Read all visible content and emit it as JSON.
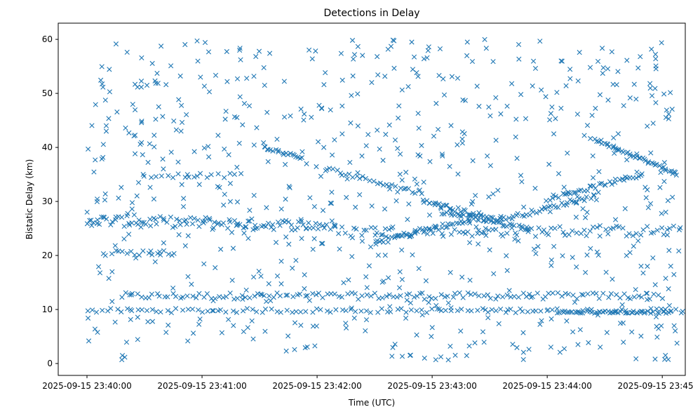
{
  "chart_data": {
    "type": "scatter",
    "title": "Detections in Delay",
    "xlabel": "Time (UTC)",
    "ylabel": "Bistatic Delay (km)",
    "xlim_seconds": [
      -15,
      312
    ],
    "ylim": [
      -2.2,
      63
    ],
    "x_ticks": [
      {
        "t": 0,
        "label": "2025-09-15 23:40:00"
      },
      {
        "t": 60,
        "label": "2025-09-15 23:41:00"
      },
      {
        "t": 120,
        "label": "2025-09-15 23:42:00"
      },
      {
        "t": 180,
        "label": "2025-09-15 23:43:00"
      },
      {
        "t": 240,
        "label": "2025-09-15 23:44:00"
      },
      {
        "t": 300,
        "label": "2025-09-15 23:45:00"
      }
    ],
    "y_ticks": [
      0,
      10,
      20,
      30,
      40,
      50,
      60
    ],
    "marker": "x",
    "color": "#1f77b4",
    "tracks": [
      {
        "t0": 18,
        "t1": 300,
        "y0": 12.5,
        "y1": 12.5,
        "n": 140,
        "jitter": 0.6
      },
      {
        "t0": 0,
        "t1": 310,
        "y0": 9.8,
        "y1": 9.8,
        "n": 120,
        "jitter": 0.4
      },
      {
        "t0": 0,
        "t1": 130,
        "y0": 26.5,
        "y1": 25.5,
        "n": 110,
        "jitter": 1.0
      },
      {
        "t0": 130,
        "t1": 310,
        "y0": 24.5,
        "y1": 24.5,
        "n": 100,
        "jitter": 1.0
      },
      {
        "t0": 150,
        "t1": 200,
        "y0": 22.5,
        "y1": 26.5,
        "n": 40,
        "jitter": 0.5
      },
      {
        "t0": 175,
        "t1": 215,
        "y0": 30.0,
        "y1": 26.5,
        "n": 40,
        "jitter": 0.5
      },
      {
        "t0": 185,
        "t1": 230,
        "y0": 28.0,
        "y1": 25.0,
        "n": 35,
        "jitter": 0.4
      },
      {
        "t0": 215,
        "t1": 265,
        "y0": 26.5,
        "y1": 31.0,
        "n": 40,
        "jitter": 0.4
      },
      {
        "t0": 240,
        "t1": 290,
        "y0": 30.5,
        "y1": 35.0,
        "n": 40,
        "jitter": 0.4
      },
      {
        "t0": 265,
        "t1": 308,
        "y0": 41.5,
        "y1": 35.0,
        "n": 45,
        "jitter": 0.3
      },
      {
        "t0": 92,
        "t1": 112,
        "y0": 40.0,
        "y1": 38.0,
        "n": 20,
        "jitter": 0.3
      },
      {
        "t0": 125,
        "t1": 175,
        "y0": 36.0,
        "y1": 31.5,
        "n": 30,
        "jitter": 0.4
      },
      {
        "t0": 8,
        "t1": 45,
        "y0": 20.5,
        "y1": 20.5,
        "n": 18,
        "jitter": 0.5
      },
      {
        "t0": 30,
        "t1": 80,
        "y0": 34.8,
        "y1": 34.8,
        "n": 18,
        "jitter": 0.4
      },
      {
        "t0": 245,
        "t1": 305,
        "y0": 9.5,
        "y1": 9.5,
        "n": 40,
        "jitter": 0.2
      }
    ],
    "noise": {
      "count": 700,
      "t0": 0,
      "t1": 310,
      "y0": 0.5,
      "y1": 60
    }
  }
}
